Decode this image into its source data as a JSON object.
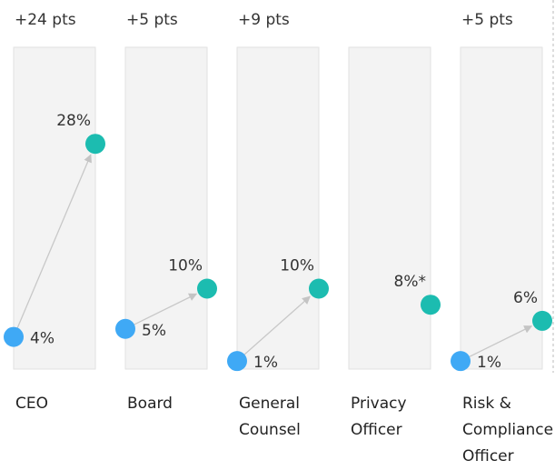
{
  "chart_data": {
    "type": "slope",
    "annotations": [
      "+24 pts",
      "+5 pts",
      "+9 pts",
      null,
      "+5 pts"
    ],
    "categories": [
      "CEO",
      "Board",
      "General Counsel",
      "Privacy Officer",
      "Risk & Compliance Officer"
    ],
    "series": [
      {
        "color": "#3fa9f5",
        "values": [
          4,
          5,
          1,
          null,
          1
        ],
        "value_labels": [
          "4%",
          "5%",
          "1%",
          null,
          "1%"
        ]
      },
      {
        "color": "#1cbcb0",
        "values": [
          28,
          10,
          10,
          8,
          6
        ],
        "value_labels": [
          "28%",
          "10%",
          "10%",
          "8%*",
          "6%"
        ]
      }
    ],
    "ylim": [
      0,
      40
    ]
  }
}
